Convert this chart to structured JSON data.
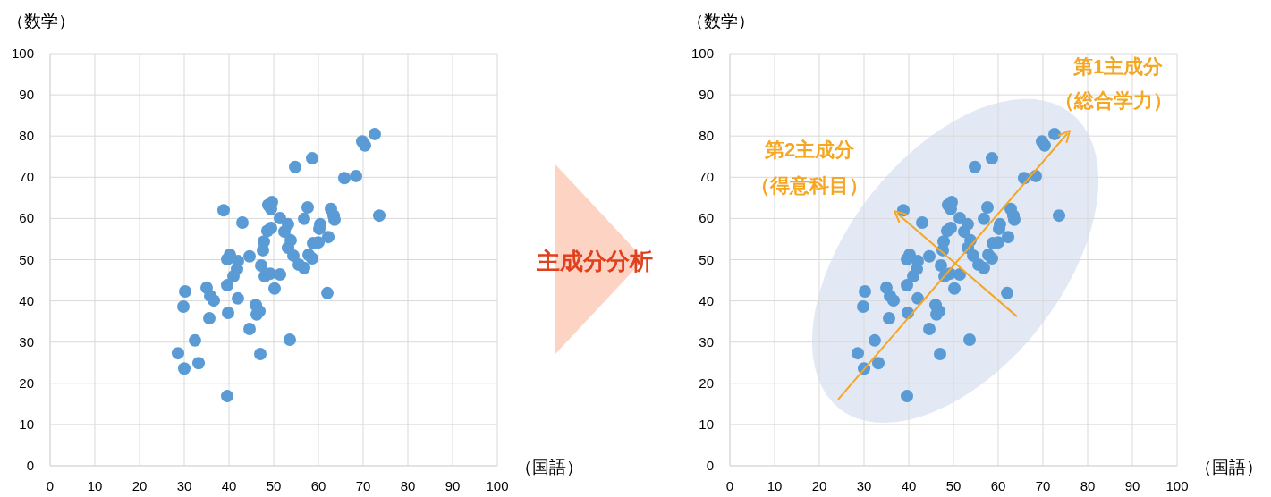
{
  "chart_data": [
    {
      "type": "scatter",
      "xlabel": "（国語）",
      "ylabel": "（数学）",
      "xlim": [
        0,
        100
      ],
      "ylim": [
        0,
        100
      ],
      "xticks": [
        0,
        10,
        20,
        30,
        40,
        50,
        60,
        70,
        80,
        90,
        100
      ],
      "yticks": [
        0,
        10,
        20,
        30,
        40,
        50,
        60,
        70,
        80,
        90,
        100
      ],
      "grid": true,
      "marker": "circle",
      "annotations": [
        "主成分分析"
      ],
      "series": [
        {
          "color": "#5b9bd5",
          "x": [
            28.6,
            30,
            30.2,
            29.8,
            32.4,
            33.2,
            35,
            35.6,
            35.8,
            36.6,
            38.8,
            39.6,
            39.8,
            39.6,
            39.6,
            40.2,
            41,
            41.8,
            42,
            42,
            43,
            44.6,
            44.6,
            46,
            46.2,
            46.8,
            47,
            47.2,
            47.6,
            47.8,
            48,
            48.6,
            48.8,
            49.6,
            49.4,
            49.4,
            49.2,
            50.2,
            51.4,
            51.4,
            52.4,
            53.2,
            53.2,
            53.8,
            54.4,
            53.6,
            54.8,
            55.6,
            56.8,
            56.8,
            57.6,
            57.8,
            58.6,
            58.6,
            58.8,
            60,
            60.2,
            60.4,
            62,
            62.2,
            62.8,
            63.4,
            63.6,
            65.8,
            68.4,
            69.8,
            70.4,
            72.6,
            73.6
          ],
          "values": [
            27.3,
            23.6,
            42.3,
            38.6,
            30.4,
            24.9,
            43.2,
            35.8,
            41.2,
            40.1,
            62,
            16.9,
            37.1,
            43.8,
            50.1,
            51.2,
            46,
            47.7,
            49.7,
            40.6,
            59,
            50.8,
            33.2,
            39,
            36.7,
            37.5,
            27.1,
            48.6,
            52.3,
            54.4,
            46,
            57,
            63.3,
            64,
            57.7,
            62.3,
            46.6,
            43,
            60.1,
            46.4,
            56.8,
            58.6,
            52.9,
            54.7,
            51,
            30.6,
            72.5,
            48.8,
            48,
            59.9,
            62.7,
            51.2,
            74.6,
            50.3,
            54,
            54.2,
            57.5,
            58.6,
            41.9,
            55.5,
            62.3,
            60.7,
            59.7,
            69.8,
            70.3,
            78.7,
            77.7,
            80.5,
            60.7
          ]
        }
      ]
    },
    {
      "type": "scatter",
      "xlabel": "（国語）",
      "ylabel": "（数学）",
      "xlim": [
        0,
        100
      ],
      "ylim": [
        0,
        100
      ],
      "xticks": [
        0,
        10,
        20,
        30,
        40,
        50,
        60,
        70,
        80,
        90,
        100
      ],
      "yticks": [
        0,
        10,
        20,
        30,
        40,
        50,
        60,
        70,
        80,
        90,
        100
      ],
      "grid": true,
      "marker": "circle",
      "annotations": [
        "第1主成分",
        "（総合学力）",
        "第2主成分",
        "（得意科目）"
      ],
      "series": [
        {
          "color": "#5b9bd5",
          "x": [
            28.6,
            30,
            30.2,
            29.8,
            32.4,
            33.2,
            35,
            35.6,
            35.8,
            36.6,
            38.8,
            39.6,
            39.8,
            39.6,
            39.6,
            40.2,
            41,
            41.8,
            42,
            42,
            43,
            44.6,
            44.6,
            46,
            46.2,
            46.8,
            47,
            47.2,
            47.6,
            47.8,
            48,
            48.6,
            48.8,
            49.6,
            49.4,
            49.4,
            49.2,
            50.2,
            51.4,
            51.4,
            52.4,
            53.2,
            53.2,
            53.8,
            54.4,
            53.6,
            54.8,
            55.6,
            56.8,
            56.8,
            57.6,
            57.8,
            58.6,
            58.6,
            58.8,
            60,
            60.2,
            60.4,
            62,
            62.2,
            62.8,
            63.4,
            63.6,
            65.8,
            68.4,
            69.8,
            70.4,
            72.6,
            73.6
          ],
          "values": [
            27.3,
            23.6,
            42.3,
            38.6,
            30.4,
            24.9,
            43.2,
            35.8,
            41.2,
            40.1,
            62,
            16.9,
            37.1,
            43.8,
            50.1,
            51.2,
            46,
            47.7,
            49.7,
            40.6,
            59,
            50.8,
            33.2,
            39,
            36.7,
            37.5,
            27.1,
            48.6,
            52.3,
            54.4,
            46,
            57,
            63.3,
            64,
            57.7,
            62.3,
            46.6,
            43,
            60.1,
            46.4,
            56.8,
            58.6,
            52.9,
            54.7,
            51,
            30.6,
            72.5,
            48.8,
            48,
            59.9,
            62.7,
            51.2,
            74.6,
            50.3,
            54,
            54.2,
            57.5,
            58.6,
            41.9,
            55.5,
            62.3,
            60.7,
            59.7,
            69.8,
            70.3,
            78.7,
            77.7,
            80.5,
            60.7
          ]
        }
      ]
    }
  ]
}
